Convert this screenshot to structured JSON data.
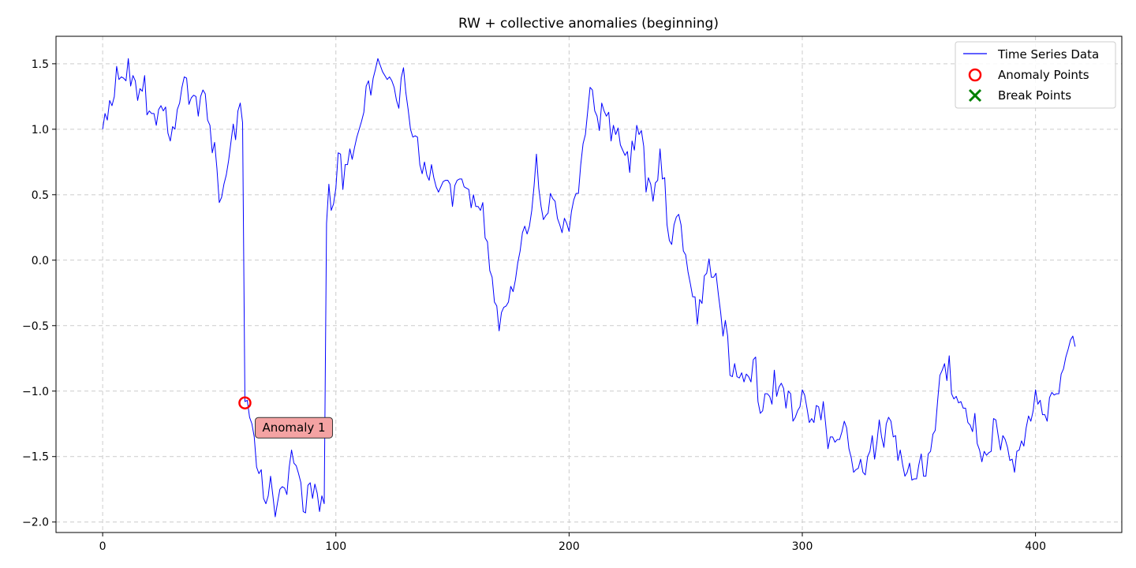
{
  "chart_data": {
    "type": "line",
    "title": "RW + collective anomalies (beginning)",
    "xlabel": "",
    "ylabel": "",
    "xlim": [
      -20,
      437
    ],
    "ylim": [
      -2.08,
      1.71
    ],
    "x_ticks": [
      0,
      100,
      200,
      300,
      400
    ],
    "y_ticks": [
      -2.0,
      -1.5,
      -1.0,
      -0.5,
      0.0,
      0.5,
      1.0,
      1.5
    ],
    "x_tick_labels": [
      "0",
      "100",
      "200",
      "300",
      "400"
    ],
    "y_tick_labels": [
      "−2.0",
      "−1.5",
      "−1.0",
      "−0.5",
      "0.0",
      "0.5",
      "1.0",
      "1.5"
    ],
    "grid": true,
    "legend_position": "top-right",
    "colors": {
      "line": "#0000ff",
      "anomaly": "#ff0000",
      "break": "#008000",
      "annotation_bg": "#f4a3a3"
    },
    "series": [
      {
        "name": "Time Series Data",
        "x_start": 0,
        "x_step": 1,
        "values": [
          1.0,
          1.12,
          1.07,
          1.22,
          1.18,
          1.25,
          1.48,
          1.38,
          1.4,
          1.39,
          1.37,
          1.54,
          1.33,
          1.41,
          1.37,
          1.22,
          1.31,
          1.29,
          1.41,
          1.11,
          1.14,
          1.12,
          1.12,
          1.03,
          1.15,
          1.18,
          1.14,
          1.17,
          0.97,
          0.91,
          1.02,
          1.0,
          1.15,
          1.2,
          1.32,
          1.4,
          1.39,
          1.19,
          1.24,
          1.26,
          1.25,
          1.1,
          1.25,
          1.3,
          1.27,
          1.07,
          1.03,
          0.82,
          0.9,
          0.7,
          0.44,
          0.48,
          0.58,
          0.65,
          0.76,
          0.9,
          1.04,
          0.92,
          1.14,
          1.2,
          1.05,
          -1.08,
          -1.07,
          -1.2,
          -1.25,
          -1.35,
          -1.58,
          -1.63,
          -1.6,
          -1.82,
          -1.86,
          -1.8,
          -1.65,
          -1.8,
          -1.96,
          -1.85,
          -1.75,
          -1.73,
          -1.74,
          -1.79,
          -1.58,
          -1.45,
          -1.55,
          -1.57,
          -1.63,
          -1.7,
          -1.92,
          -1.93,
          -1.72,
          -1.7,
          -1.82,
          -1.71,
          -1.78,
          -1.92,
          -1.8,
          -1.86,
          0.28,
          0.58,
          0.38,
          0.43,
          0.55,
          0.82,
          0.81,
          0.54,
          0.73,
          0.73,
          0.85,
          0.77,
          0.86,
          0.94,
          1.0,
          1.06,
          1.13,
          1.33,
          1.37,
          1.26,
          1.39,
          1.46,
          1.54,
          1.49,
          1.44,
          1.41,
          1.38,
          1.4,
          1.37,
          1.32,
          1.22,
          1.16,
          1.39,
          1.47,
          1.28,
          1.15,
          1.0,
          0.94,
          0.95,
          0.94,
          0.73,
          0.66,
          0.75,
          0.65,
          0.61,
          0.73,
          0.63,
          0.56,
          0.52,
          0.56,
          0.6,
          0.61,
          0.61,
          0.58,
          0.41,
          0.57,
          0.61,
          0.62,
          0.62,
          0.56,
          0.55,
          0.54,
          0.4,
          0.5,
          0.41,
          0.41,
          0.38,
          0.44,
          0.17,
          0.14,
          -0.08,
          -0.13,
          -0.32,
          -0.35,
          -0.54,
          -0.4,
          -0.36,
          -0.35,
          -0.32,
          -0.2,
          -0.24,
          -0.15,
          -0.02,
          0.07,
          0.21,
          0.26,
          0.2,
          0.26,
          0.38,
          0.57,
          0.81,
          0.55,
          0.41,
          0.31,
          0.34,
          0.36,
          0.51,
          0.47,
          0.45,
          0.32,
          0.27,
          0.21,
          0.32,
          0.28,
          0.22,
          0.37,
          0.46,
          0.51,
          0.51,
          0.73,
          0.89,
          0.96,
          1.14,
          1.32,
          1.3,
          1.14,
          1.1,
          0.99,
          1.2,
          1.14,
          1.1,
          1.13,
          0.91,
          1.03,
          0.96,
          1.01,
          0.88,
          0.84,
          0.8,
          0.83,
          0.67,
          0.91,
          0.84,
          1.03,
          0.96,
          0.99,
          0.87,
          0.52,
          0.63,
          0.58,
          0.45,
          0.59,
          0.61,
          0.85,
          0.62,
          0.63,
          0.27,
          0.15,
          0.12,
          0.27,
          0.33,
          0.35,
          0.27,
          0.07,
          0.04,
          -0.09,
          -0.18,
          -0.28,
          -0.28,
          -0.49,
          -0.3,
          -0.33,
          -0.12,
          -0.1,
          0.01,
          -0.13,
          -0.13,
          -0.1,
          -0.26,
          -0.4,
          -0.58,
          -0.46,
          -0.58,
          -0.88,
          -0.89,
          -0.79,
          -0.89,
          -0.9,
          -0.86,
          -0.93,
          -0.87,
          -0.89,
          -0.93,
          -0.76,
          -0.74,
          -1.08,
          -1.17,
          -1.15,
          -1.02,
          -1.02,
          -1.04,
          -1.1,
          -0.84,
          -1.04,
          -0.97,
          -0.94,
          -0.98,
          -1.13,
          -1.0,
          -1.02,
          -1.23,
          -1.2,
          -1.15,
          -1.12,
          -0.99,
          -1.03,
          -1.13,
          -1.24,
          -1.21,
          -1.24,
          -1.11,
          -1.12,
          -1.22,
          -1.08,
          -1.25,
          -1.44,
          -1.35,
          -1.35,
          -1.39,
          -1.37,
          -1.37,
          -1.31,
          -1.23,
          -1.28,
          -1.44,
          -1.51,
          -1.62,
          -1.6,
          -1.59,
          -1.52,
          -1.62,
          -1.64,
          -1.5,
          -1.46,
          -1.34,
          -1.52,
          -1.39,
          -1.22,
          -1.35,
          -1.43,
          -1.25,
          -1.2,
          -1.23,
          -1.35,
          -1.34,
          -1.53,
          -1.45,
          -1.56,
          -1.65,
          -1.62,
          -1.55,
          -1.68,
          -1.67,
          -1.67,
          -1.56,
          -1.48,
          -1.65,
          -1.65,
          -1.48,
          -1.46,
          -1.33,
          -1.3,
          -1.08,
          -0.88,
          -0.84,
          -0.79,
          -0.92,
          -0.73,
          -1.02,
          -1.06,
          -1.04,
          -1.09,
          -1.08,
          -1.13,
          -1.13,
          -1.24,
          -1.26,
          -1.31,
          -1.17,
          -1.4,
          -1.45,
          -1.54,
          -1.46,
          -1.49,
          -1.47,
          -1.46,
          -1.21,
          -1.22,
          -1.34,
          -1.45,
          -1.34,
          -1.37,
          -1.43,
          -1.53,
          -1.52,
          -1.62,
          -1.46,
          -1.45,
          -1.38,
          -1.42,
          -1.28,
          -1.19,
          -1.23,
          -1.15,
          -0.99,
          -1.1,
          -1.07,
          -1.18,
          -1.18,
          -1.23,
          -1.05,
          -1.01,
          -1.03,
          -1.02,
          -1.02,
          -0.87,
          -0.83,
          -0.74,
          -0.68,
          -0.61,
          -0.58,
          -0.66
        ]
      }
    ],
    "anomaly_points": [
      {
        "x": 61,
        "y": -1.09
      }
    ],
    "break_points": [],
    "annotations": [
      {
        "text": "Anomaly 1",
        "x": 82,
        "y": -1.28
      }
    ],
    "legend": [
      "Time Series Data",
      "Anomaly Points",
      "Break Points"
    ]
  }
}
